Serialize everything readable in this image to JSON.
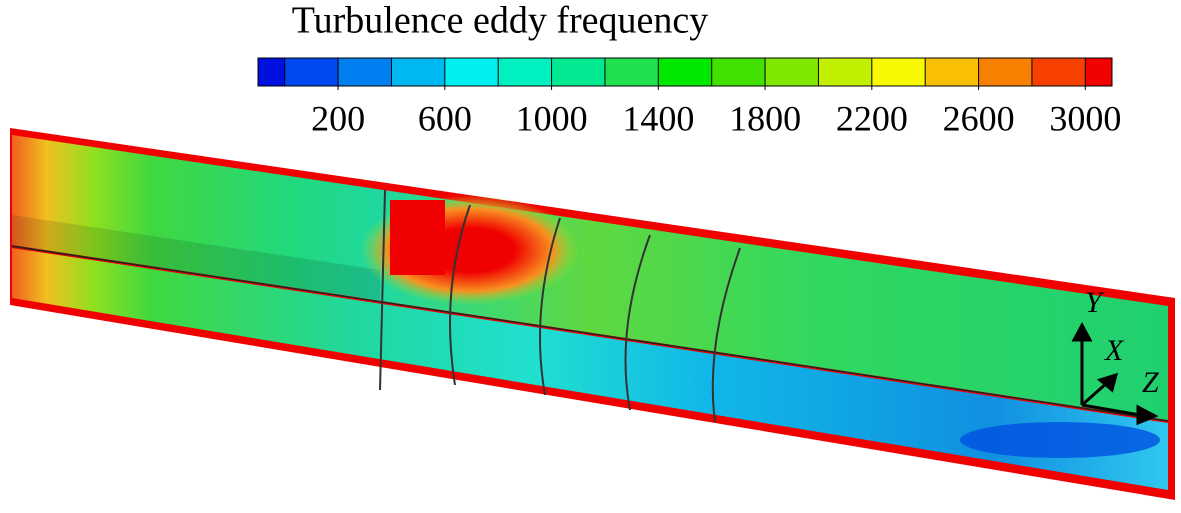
{
  "title": "Turbulence eddy frequency",
  "colorbar": {
    "lim": [
      -100,
      3100
    ],
    "levels": [
      0,
      200,
      400,
      600,
      800,
      1000,
      1200,
      1400,
      1600,
      1800,
      2000,
      2200,
      2400,
      2600,
      2800,
      3000
    ],
    "colors": [
      "#0010e0",
      "#0048f0",
      "#0080f0",
      "#00b8f0",
      "#00f0f0",
      "#00f0c0",
      "#00e890",
      "#20e050",
      "#00e800",
      "#40e000",
      "#80e800",
      "#c0f000",
      "#f8f800",
      "#f8c000",
      "#f88000",
      "#f84000",
      "#f00000"
    ],
    "ticks": [
      200,
      600,
      1000,
      1400,
      1800,
      2200,
      2600,
      3000
    ]
  },
  "triad": {
    "y": "Y",
    "x": "X",
    "z": "Z"
  }
}
